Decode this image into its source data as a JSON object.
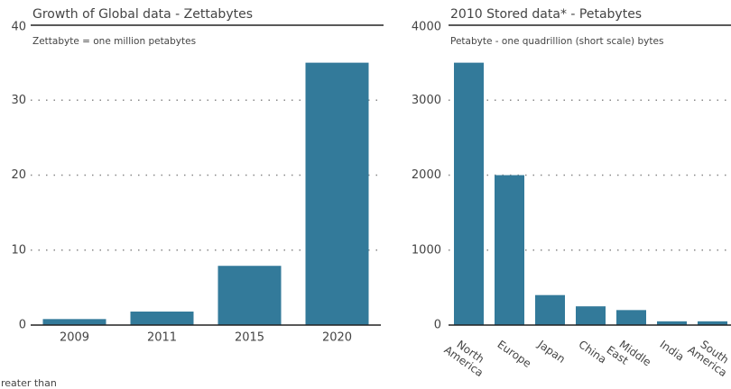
{
  "chart_data": [
    {
      "type": "bar",
      "title": "Growth of Global data - Zettabytes",
      "subtitle": "Zettabyte = one million petabytes",
      "categories": [
        "2009",
        "2011",
        "2015",
        "2020"
      ],
      "values": [
        0.8,
        1.8,
        7.9,
        35
      ],
      "color": "#337a9a",
      "ylim": [
        0,
        40
      ],
      "yticks": [
        0,
        10,
        20,
        30,
        40
      ],
      "grid": true,
      "label_rotation": 0
    },
    {
      "type": "bar",
      "title": "2010 Stored data* - Petabytes",
      "subtitle": "Petabyte - one quadrillion (short scale) bytes",
      "categories": [
        "North America",
        "Europe",
        "Japan",
        "China",
        "Middle East",
        "India",
        "South America"
      ],
      "values": [
        3500,
        2000,
        400,
        250,
        200,
        50,
        50
      ],
      "color": "#337a9a",
      "ylim": [
        0,
        4000
      ],
      "yticks": [
        0,
        1000,
        2000,
        3000,
        4000
      ],
      "grid": true,
      "label_rotation": 35
    }
  ],
  "footnote": "greater than"
}
